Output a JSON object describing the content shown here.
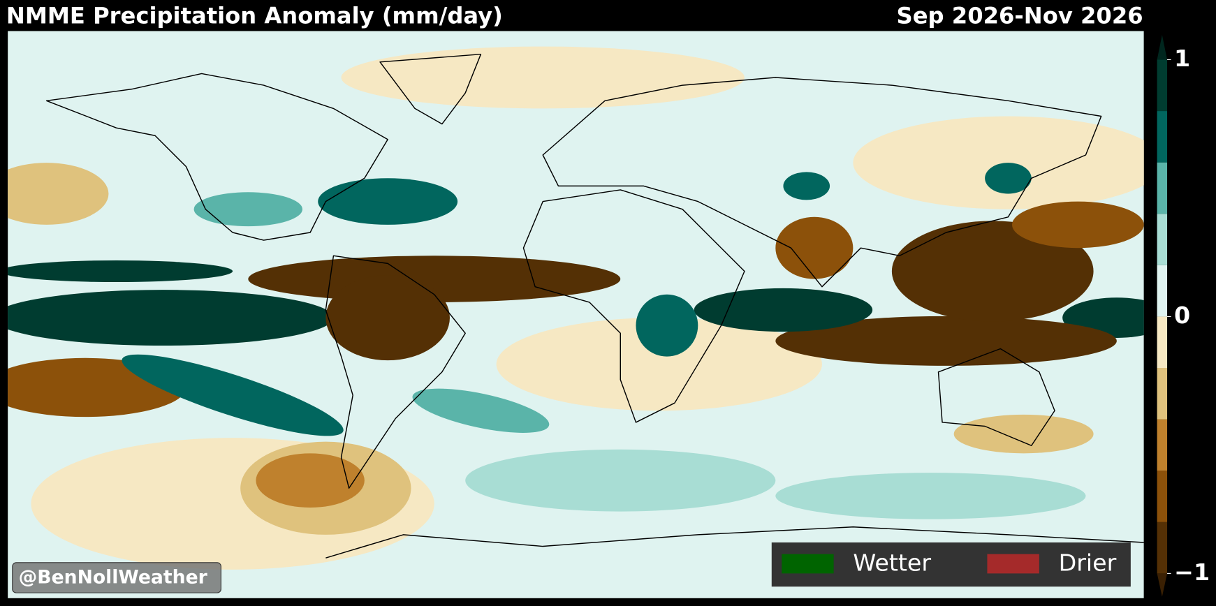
{
  "header": {
    "title": "NMME Precipitation Anomaly (mm/day)",
    "period": "Sep 2026-Nov 2026"
  },
  "colorbar": {
    "lim": [
      -1,
      1
    ],
    "ticks": [
      1,
      0,
      {
        "value": -1,
        "label": "−1"
      }
    ],
    "colors": [
      "#543005",
      "#8c510a",
      "#bf812d",
      "#dfc27d",
      "#f6e8c3",
      "#dff3f0",
      "#a8ddd4",
      "#5ab4a9",
      "#01665e",
      "#003c30"
    ]
  },
  "legend": [
    {
      "label": "Wetter",
      "color": "#006400"
    },
    {
      "label": "Drier",
      "color": "#a52a2a"
    }
  ],
  "watermark": "@BenNollWeather"
}
